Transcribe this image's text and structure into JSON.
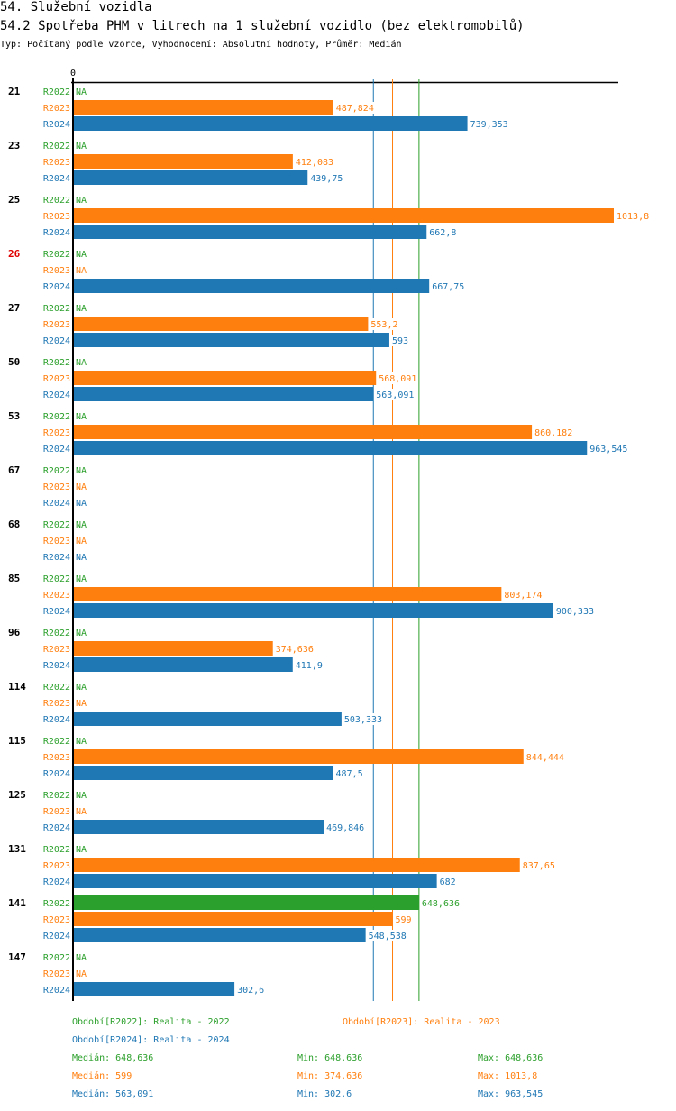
{
  "header": {
    "section_title": "54. Služební vozidla",
    "chart_title": "54.2 Spotřeba PHM v litrech na 1 služební vozidlo (bez elektromobilů)",
    "subtitle": "Typ: Počítaný podle vzorce, Vyhodnocení: Absolutní hodnoty, Průměr: Medián"
  },
  "colors": {
    "R2022": "#2ca02c",
    "R2023": "#ff7f0e",
    "R2024": "#1f77b4",
    "axis": "#000000",
    "highlight_label": "#e00000"
  },
  "chart_data": {
    "type": "bar",
    "orientation": "horizontal",
    "title": "54.2 Spotřeba PHM v litrech na 1 služební vozidlo (bez elektromobilů)",
    "axis_zero_label": "0",
    "xlim": [
      0,
      1013.8
    ],
    "series_names": [
      "R2022",
      "R2023",
      "R2024"
    ],
    "na_label": "NA",
    "categories": [
      {
        "label": "21",
        "highlight": false,
        "values": [
          null,
          487.824,
          739.353
        ],
        "labels": [
          "NA",
          "487,824",
          "739,353"
        ]
      },
      {
        "label": "23",
        "highlight": false,
        "values": [
          null,
          412.083,
          439.75
        ],
        "labels": [
          "NA",
          "412,083",
          "439,75"
        ]
      },
      {
        "label": "25",
        "highlight": false,
        "values": [
          null,
          1013.8,
          662.8
        ],
        "labels": [
          "NA",
          "1013,8",
          "662,8"
        ]
      },
      {
        "label": "26",
        "highlight": true,
        "values": [
          null,
          null,
          667.75
        ],
        "labels": [
          "NA",
          "NA",
          "667,75"
        ]
      },
      {
        "label": "27",
        "highlight": false,
        "values": [
          null,
          553.2,
          593
        ],
        "labels": [
          "NA",
          "553,2",
          "593"
        ]
      },
      {
        "label": "50",
        "highlight": false,
        "values": [
          null,
          568.091,
          563.091
        ],
        "labels": [
          "NA",
          "568,091",
          "563,091"
        ]
      },
      {
        "label": "53",
        "highlight": false,
        "values": [
          null,
          860.182,
          963.545
        ],
        "labels": [
          "NA",
          "860,182",
          "963,545"
        ]
      },
      {
        "label": "67",
        "highlight": false,
        "values": [
          null,
          null,
          null
        ],
        "labels": [
          "NA",
          "NA",
          "NA"
        ]
      },
      {
        "label": "68",
        "highlight": false,
        "values": [
          null,
          null,
          null
        ],
        "labels": [
          "NA",
          "NA",
          "NA"
        ]
      },
      {
        "label": "85",
        "highlight": false,
        "values": [
          null,
          803.174,
          900.333
        ],
        "labels": [
          "NA",
          "803,174",
          "900,333"
        ]
      },
      {
        "label": "96",
        "highlight": false,
        "values": [
          null,
          374.636,
          411.9
        ],
        "labels": [
          "NA",
          "374,636",
          "411,9"
        ]
      },
      {
        "label": "114",
        "highlight": false,
        "values": [
          null,
          null,
          503.333
        ],
        "labels": [
          "NA",
          "NA",
          "503,333"
        ]
      },
      {
        "label": "115",
        "highlight": false,
        "values": [
          null,
          844.444,
          487.5
        ],
        "labels": [
          "NA",
          "844,444",
          "487,5"
        ]
      },
      {
        "label": "125",
        "highlight": false,
        "values": [
          null,
          null,
          469.846
        ],
        "labels": [
          "NA",
          "NA",
          "469,846"
        ]
      },
      {
        "label": "131",
        "highlight": false,
        "values": [
          null,
          837.65,
          682
        ],
        "labels": [
          "NA",
          "837,65",
          "682"
        ]
      },
      {
        "label": "141",
        "highlight": false,
        "values": [
          648.636,
          599,
          548.538
        ],
        "labels": [
          "648,636",
          "599",
          "548,538"
        ]
      },
      {
        "label": "147",
        "highlight": false,
        "values": [
          null,
          null,
          302.6
        ],
        "labels": [
          "NA",
          "NA",
          "302,6"
        ]
      }
    ],
    "median_lines": [
      {
        "series": "R2024",
        "value": 563.091
      },
      {
        "series": "R2023",
        "value": 599
      },
      {
        "series": "R2022",
        "value": 648.636
      }
    ]
  },
  "legend": {
    "periods": [
      {
        "series": "R2022",
        "text": "Období[R2022]: Realita - 2022"
      },
      {
        "series": "R2023",
        "text": "Období[R2023]: Realita - 2023"
      },
      {
        "series": "R2024",
        "text": "Období[R2024]: Realita - 2024"
      }
    ],
    "stats": [
      {
        "series": "R2022",
        "median": "Medián: 648,636",
        "min": "Min: 648,636",
        "max": "Max: 648,636"
      },
      {
        "series": "R2023",
        "median": "Medián: 599",
        "min": "Min: 374,636",
        "max": "Max: 1013,8"
      },
      {
        "series": "R2024",
        "median": "Medián: 563,091",
        "min": "Min: 302,6",
        "max": "Max: 963,545"
      }
    ]
  }
}
